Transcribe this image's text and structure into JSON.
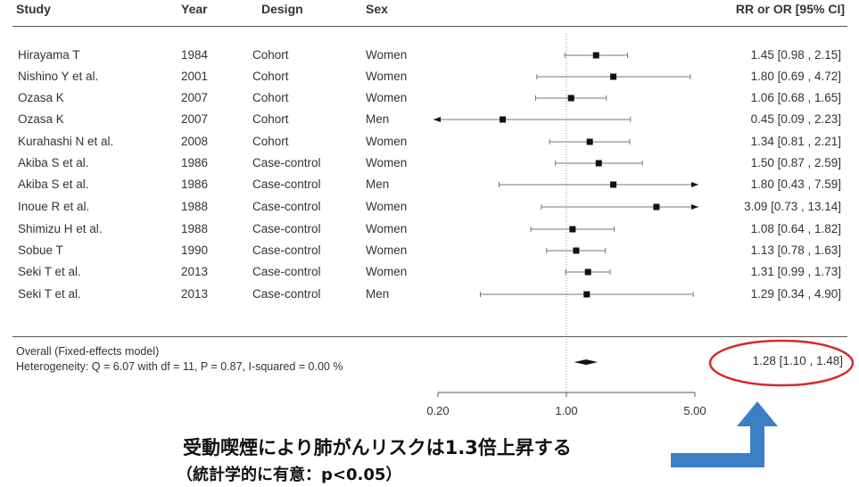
{
  "headers": {
    "study": "Study",
    "year": "Year",
    "design": "Design",
    "sex": "Sex",
    "rr": "RR or OR [95% CI]"
  },
  "rows": [
    {
      "study": "Hirayama T",
      "year": "1984",
      "design": "Cohort",
      "sex": "Women",
      "rr_text": "1.45 [0.98 ,  2.15]"
    },
    {
      "study": "Nishino Y et al.",
      "year": "2001",
      "design": "Cohort",
      "sex": "Women",
      "rr_text": "1.80 [0.69 ,  4.72]"
    },
    {
      "study": "Ozasa K",
      "year": "2007",
      "design": "Cohort",
      "sex": "Women",
      "rr_text": "1.06 [0.68 ,  1.65]"
    },
    {
      "study": "Ozasa K",
      "year": "2007",
      "design": "Cohort",
      "sex": "Men",
      "rr_text": "0.45 [0.09 ,  2.23]"
    },
    {
      "study": "Kurahashi N et al.",
      "year": "2008",
      "design": "Cohort",
      "sex": "Women",
      "rr_text": "1.34 [0.81 ,  2.21]"
    },
    {
      "study": "Akiba S et al.",
      "year": "1986",
      "design": "Case-control",
      "sex": "Women",
      "rr_text": "1.50 [0.87 ,  2.59]"
    },
    {
      "study": "Akiba S et al.",
      "year": "1986",
      "design": "Case-control",
      "sex": "Men",
      "rr_text": "1.80 [0.43 ,  7.59]"
    },
    {
      "study": "Inoue R et al.",
      "year": "1988",
      "design": "Case-control",
      "sex": "Women",
      "rr_text": "3.09 [0.73 , 13.14]"
    },
    {
      "study": "Shimizu H et al.",
      "year": "1988",
      "design": "Case-control",
      "sex": "Women",
      "rr_text": "1.08 [0.64 ,  1.82]"
    },
    {
      "study": "Sobue T",
      "year": "1990",
      "design": "Case-control",
      "sex": "Women",
      "rr_text": "1.13 [0.78 ,  1.63]"
    },
    {
      "study": "Seki T et al.",
      "year": "2013",
      "design": "Case-control",
      "sex": "Women",
      "rr_text": "1.31 [0.99 ,  1.73]"
    },
    {
      "study": "Seki T et al.",
      "year": "2013",
      "design": "Case-control",
      "sex": "Men",
      "rr_text": "1.29 [0.34 ,  4.90]"
    }
  ],
  "overall": {
    "label": "Overall (Fixed-effects model)",
    "heterogeneity": "Heterogeneity: Q = 6.07 with df = 11,  P = 0.87,  I-squared = 0.00 %",
    "rr_text": "1.28 [1.10 ,  1.48]"
  },
  "annotation": {
    "line1": "受動喫煙により肺がんリスクは1.3倍上昇する",
    "line2": "（統計学的に有意：p<0.05）"
  },
  "colors": {
    "circle": "#d42a2a",
    "arrow": "#3c7fc4",
    "marker": "#111111"
  },
  "chart_data": {
    "type": "forest",
    "scale": "log",
    "xlim": [
      0.2,
      5.0
    ],
    "reference_line": 1.0,
    "ticks": [
      {
        "value": 0.2,
        "label": "0.20"
      },
      {
        "value": 1.0,
        "label": "1.00"
      },
      {
        "value": 5.0,
        "label": "5.00"
      }
    ],
    "studies": [
      {
        "est": 1.45,
        "lo": 0.98,
        "hi": 2.15
      },
      {
        "est": 1.8,
        "lo": 0.69,
        "hi": 4.72
      },
      {
        "est": 1.06,
        "lo": 0.68,
        "hi": 1.65
      },
      {
        "est": 0.45,
        "lo": 0.09,
        "hi": 2.23
      },
      {
        "est": 1.34,
        "lo": 0.81,
        "hi": 2.21
      },
      {
        "est": 1.5,
        "lo": 0.87,
        "hi": 2.59
      },
      {
        "est": 1.8,
        "lo": 0.43,
        "hi": 7.59
      },
      {
        "est": 3.09,
        "lo": 0.73,
        "hi": 13.14
      },
      {
        "est": 1.08,
        "lo": 0.64,
        "hi": 1.82
      },
      {
        "est": 1.13,
        "lo": 0.78,
        "hi": 1.63
      },
      {
        "est": 1.31,
        "lo": 0.99,
        "hi": 1.73
      },
      {
        "est": 1.29,
        "lo": 0.34,
        "hi": 4.9
      }
    ],
    "pooled": {
      "est": 1.28,
      "lo": 1.1,
      "hi": 1.48
    }
  }
}
